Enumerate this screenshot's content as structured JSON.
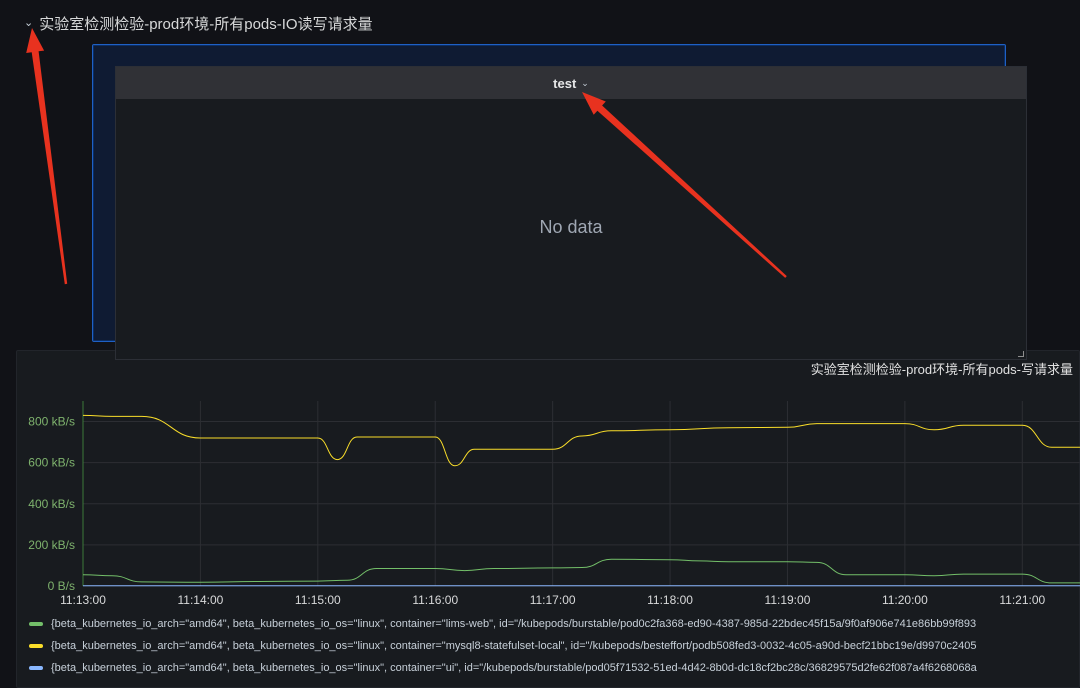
{
  "row": {
    "title": "实验室检测检验-prod环境-所有pods-IO读写请求量",
    "collapse_icon": "chevron-down-icon"
  },
  "dragged_panel": {
    "title": "test",
    "menu_icon": "chevron-down-icon",
    "empty_message": "No data"
  },
  "graph_panel": {
    "title": "实验室检测检验-prod环境-所有pods-写请求量"
  },
  "annotation": {
    "arrow_color": "#e8321f"
  },
  "chart_data": {
    "type": "line",
    "title": "实验室检测检验-prod环境-所有pods-写请求量",
    "xlabel": "",
    "ylabel": "",
    "x_ticks": [
      "11:13:00",
      "11:14:00",
      "11:15:00",
      "11:16:00",
      "11:17:00",
      "11:18:00",
      "11:19:00",
      "11:20:00",
      "11:21:00"
    ],
    "y_ticks": [
      "0 B/s",
      "200 kB/s",
      "400 kB/s",
      "600 kB/s",
      "800 kB/s"
    ],
    "x_range": [
      "11:13:00",
      "11:21:30"
    ],
    "ylim": [
      0,
      900
    ],
    "grid": true,
    "legend_position": "bottom",
    "series": [
      {
        "name": "{beta_kubernetes_io_arch=\"amd64\", beta_kubernetes_io_os=\"linux\", container=\"lims-web\", id=\"/kubepods/burstable/pod0c2fa368-ed90-4387-985d-22bdec45f15a/9f0af906e741e86bb99f893",
        "color": "#73bf69",
        "x": [
          "11:13:00",
          "11:13:15",
          "11:13:30",
          "11:14:00",
          "11:14:30",
          "11:15:00",
          "11:15:15",
          "11:15:30",
          "11:16:00",
          "11:16:15",
          "11:16:30",
          "11:17:00",
          "11:17:15",
          "11:17:30",
          "11:18:00",
          "11:18:15",
          "11:18:30",
          "11:19:00",
          "11:19:15",
          "11:19:30",
          "11:20:00",
          "11:20:15",
          "11:20:30",
          "11:21:00",
          "11:21:15",
          "11:21:30"
        ],
        "values": [
          55,
          50,
          20,
          18,
          22,
          24,
          28,
          85,
          85,
          75,
          85,
          88,
          90,
          130,
          128,
          122,
          118,
          118,
          115,
          55,
          55,
          50,
          58,
          58,
          15,
          15
        ]
      },
      {
        "name": "{beta_kubernetes_io_arch=\"amd64\", beta_kubernetes_io_os=\"linux\", container=\"mysql8-statefulset-local\", id=\"/kubepods/besteffort/podb508fed3-0032-4c05-a90d-becf21bbc19e/d9970c2405",
        "color": "#fade2a",
        "x": [
          "11:13:00",
          "11:13:15",
          "11:13:30",
          "11:14:00",
          "11:14:30",
          "11:15:00",
          "11:15:10",
          "11:15:20",
          "11:15:40",
          "11:16:00",
          "11:16:10",
          "11:16:20",
          "11:16:40",
          "11:17:00",
          "11:17:15",
          "11:17:30",
          "11:18:00",
          "11:18:30",
          "11:19:00",
          "11:19:15",
          "11:19:30",
          "11:20:00",
          "11:20:15",
          "11:20:30",
          "11:21:00",
          "11:21:15",
          "11:21:30"
        ],
        "values": [
          830,
          825,
          825,
          720,
          720,
          720,
          615,
          725,
          725,
          725,
          585,
          665,
          665,
          665,
          730,
          755,
          760,
          770,
          772,
          790,
          790,
          790,
          760,
          782,
          782,
          675,
          675
        ]
      },
      {
        "name": "{beta_kubernetes_io_arch=\"amd64\", beta_kubernetes_io_os=\"linux\", container=\"ui\", id=\"/kubepods/burstable/pod05f71532-51ed-4d42-8b0d-dc18cf2bc28c/36829575d2fe62f087a4f6268068a",
        "color": "#8ab8ff",
        "x": [
          "11:13:00",
          "11:21:30"
        ],
        "values": [
          1,
          1
        ]
      }
    ]
  }
}
